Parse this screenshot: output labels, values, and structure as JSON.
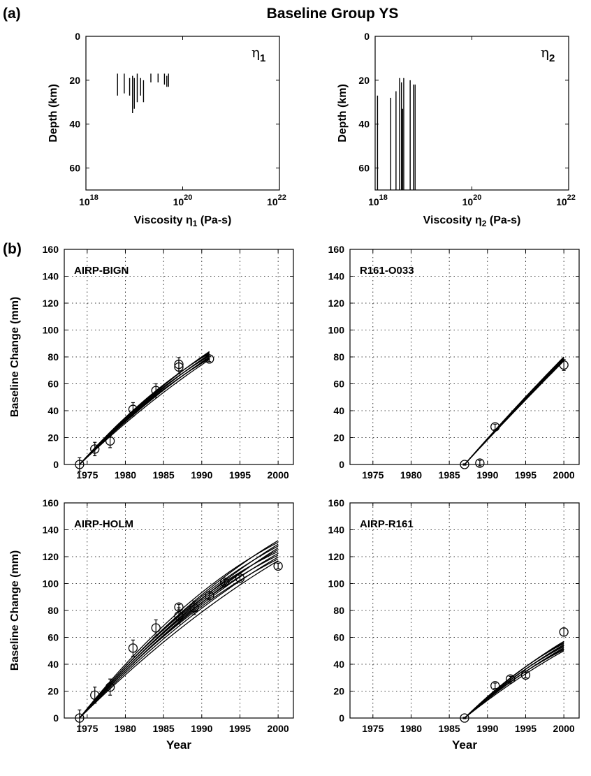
{
  "figure": {
    "title": "Baseline Group YS",
    "panel_a_label": "(a)",
    "panel_b_label": "(b)"
  },
  "chart_data": [
    {
      "id": "eta1",
      "type": "bar",
      "subtype": "vertical-interval",
      "annotation": "η",
      "annotation_sub": "1",
      "xlabel": "Viscosity η1 (Pa-s)",
      "ylabel": "Depth (km)",
      "x_scale": "log",
      "xlim": [
        1e+18,
        1e+22
      ],
      "x_ticks": [
        1e+18,
        1e+20,
        1e+22
      ],
      "y_reversed": true,
      "ylim": [
        0,
        70
      ],
      "y_ticks": [
        0,
        20,
        40,
        60
      ],
      "grid": false,
      "intervals": [
        {
          "x": 4.5e+18,
          "depth": [
            17,
            27
          ]
        },
        {
          "x": 6.2e+18,
          "depth": [
            17,
            26
          ]
        },
        {
          "x": 8e+18,
          "depth": [
            19,
            27
          ]
        },
        {
          "x": 9.2e+18,
          "depth": [
            18,
            35
          ]
        },
        {
          "x": 1e+19,
          "depth": [
            19,
            33
          ]
        },
        {
          "x": 1.15e+19,
          "depth": [
            17,
            30
          ]
        },
        {
          "x": 1.35e+19,
          "depth": [
            19,
            27
          ]
        },
        {
          "x": 1.55e+19,
          "depth": [
            20,
            30
          ]
        },
        {
          "x": 2.2e+19,
          "depth": [
            17,
            21
          ]
        },
        {
          "x": 3.1e+19,
          "depth": [
            17,
            21
          ]
        },
        {
          "x": 4.2e+19,
          "depth": [
            17,
            22
          ]
        },
        {
          "x": 4.7e+19,
          "depth": [
            18,
            23
          ]
        },
        {
          "x": 5.1e+19,
          "depth": [
            17,
            23
          ]
        }
      ]
    },
    {
      "id": "eta2",
      "type": "bar",
      "subtype": "vertical-interval",
      "annotation": "η",
      "annotation_sub": "2",
      "xlabel": "Viscosity η2 (Pa-s)",
      "ylabel": "Depth (km)",
      "x_scale": "log",
      "xlim": [
        1e+18,
        1e+22
      ],
      "x_ticks": [
        1e+18,
        1e+20,
        1e+22
      ],
      "y_reversed": true,
      "ylim": [
        0,
        70
      ],
      "y_ticks": [
        0,
        20,
        40,
        60
      ],
      "grid": false,
      "intervals": [
        {
          "x": 1.12e+18,
          "depth": [
            27,
            70
          ]
        },
        {
          "x": 2.1e+18,
          "depth": [
            28,
            70
          ]
        },
        {
          "x": 2.7e+18,
          "depth": [
            25,
            70
          ]
        },
        {
          "x": 3.2e+18,
          "depth": [
            19,
            70
          ]
        },
        {
          "x": 3.5e+18,
          "depth": [
            21,
            70
          ]
        },
        {
          "x": 3.7e+18,
          "depth": [
            33,
            70
          ]
        },
        {
          "x": 3.9e+18,
          "depth": [
            19,
            70
          ]
        },
        {
          "x": 5.3e+18,
          "depth": [
            20,
            70
          ]
        },
        {
          "x": 6.2e+18,
          "depth": [
            22,
            70
          ]
        },
        {
          "x": 6.7e+18,
          "depth": [
            22,
            70
          ]
        }
      ]
    },
    {
      "id": "airp-bign",
      "type": "line",
      "label": "AIRP-BIGN",
      "xlabel": "",
      "ylabel": "Baseline Change (mm)",
      "xlim": [
        1972,
        2002
      ],
      "x_ticks": [
        1975,
        1980,
        1985,
        1990,
        1995,
        2000
      ],
      "ylim": [
        0,
        160
      ],
      "y_ticks": [
        0,
        20,
        40,
        60,
        80,
        100,
        120,
        140,
        160
      ],
      "grid": true,
      "observations": [
        {
          "x": 1974,
          "y": 0,
          "err": 5
        },
        {
          "x": 1976,
          "y": 11.5,
          "err": 5
        },
        {
          "x": 1978,
          "y": 17.5,
          "err": 5
        },
        {
          "x": 1981,
          "y": 41,
          "err": 5
        },
        {
          "x": 1984,
          "y": 55,
          "err": 5
        },
        {
          "x": 1987,
          "y": 72.5,
          "err": 5
        },
        {
          "x": 1987,
          "y": 74.5,
          "err": 5
        },
        {
          "x": 1991,
          "y": 78.5,
          "err": 2
        }
      ],
      "model_curves": {
        "x_start": 1974,
        "x_end": 1991,
        "y_end_range": [
          78,
          84
        ],
        "count": 10,
        "curvature": 0.25
      }
    },
    {
      "id": "r161-o033",
      "type": "line",
      "label": "R161-O033",
      "xlabel": "",
      "ylabel": "",
      "xlim": [
        1972,
        2002
      ],
      "x_ticks": [
        1975,
        1980,
        1985,
        1990,
        1995,
        2000
      ],
      "ylim": [
        0,
        160
      ],
      "y_ticks": [
        0,
        20,
        40,
        60,
        80,
        100,
        120,
        140,
        160
      ],
      "grid": true,
      "observations": [
        {
          "x": 1987,
          "y": 0,
          "err": 0.5
        },
        {
          "x": 1989,
          "y": 1,
          "err": 2
        },
        {
          "x": 1991,
          "y": 28,
          "err": 2
        },
        {
          "x": 2000,
          "y": 74,
          "err": 4
        }
      ],
      "model_curves": {
        "x_start": 1987,
        "x_end": 2000,
        "y_end_range": [
          77,
          80
        ],
        "count": 6,
        "curvature": 0.05
      }
    },
    {
      "id": "airp-holm",
      "type": "line",
      "label": "AIRP-HOLM",
      "xlabel": "Year",
      "ylabel": "Baseline Change (mm)",
      "xlim": [
        1972,
        2002
      ],
      "x_ticks": [
        1975,
        1980,
        1985,
        1990,
        1995,
        2000
      ],
      "ylim": [
        0,
        160
      ],
      "y_ticks": [
        0,
        20,
        40,
        60,
        80,
        100,
        120,
        140,
        160
      ],
      "grid": true,
      "observations": [
        {
          "x": 1974,
          "y": 0,
          "err": 6
        },
        {
          "x": 1976,
          "y": 17,
          "err": 6
        },
        {
          "x": 1978,
          "y": 23,
          "err": 6
        },
        {
          "x": 1981,
          "y": 52,
          "err": 6
        },
        {
          "x": 1984,
          "y": 67,
          "err": 6
        },
        {
          "x": 1987,
          "y": 76,
          "err": 6
        },
        {
          "x": 1987,
          "y": 82.5,
          "err": 2
        },
        {
          "x": 1989,
          "y": 82,
          "err": 5
        },
        {
          "x": 1991,
          "y": 91,
          "err": 2
        },
        {
          "x": 1993,
          "y": 101,
          "err": 2
        },
        {
          "x": 1995,
          "y": 104,
          "err": 2
        },
        {
          "x": 2000,
          "y": 113,
          "err": 2
        }
      ],
      "model_curves": {
        "x_start": 1974,
        "x_end": 2000,
        "y_end_range": [
          117,
          132
        ],
        "count": 12,
        "curvature": 0.35
      }
    },
    {
      "id": "airp-r161",
      "type": "line",
      "label": "AIRP-R161",
      "xlabel": "Year",
      "ylabel": "",
      "xlim": [
        1972,
        2002
      ],
      "x_ticks": [
        1975,
        1980,
        1985,
        1990,
        1995,
        2000
      ],
      "ylim": [
        0,
        160
      ],
      "y_ticks": [
        0,
        20,
        40,
        60,
        80,
        100,
        120,
        140,
        160
      ],
      "grid": true,
      "observations": [
        {
          "x": 1987,
          "y": 0,
          "err": 0.5
        },
        {
          "x": 1991,
          "y": 24,
          "err": 2
        },
        {
          "x": 1993,
          "y": 29,
          "err": 2
        },
        {
          "x": 1995,
          "y": 32,
          "err": 2
        },
        {
          "x": 2000,
          "y": 64,
          "err": 3
        }
      ],
      "model_curves": {
        "x_start": 1987,
        "x_end": 2000,
        "y_end_range": [
          50,
          57
        ],
        "count": 10,
        "curvature": 0.25
      }
    }
  ]
}
